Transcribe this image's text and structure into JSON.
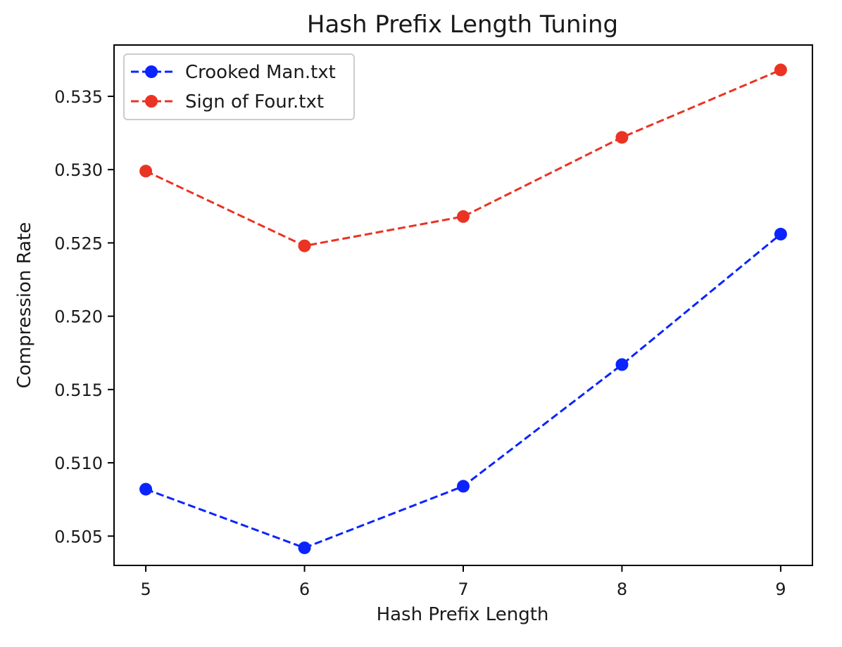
{
  "chart_data": {
    "type": "line",
    "title": "Hash Prefix Length Tuning",
    "xlabel": "Hash Prefix Length",
    "ylabel": "Compression Rate",
    "x": [
      5,
      6,
      7,
      8,
      9
    ],
    "xticks": [
      5,
      6,
      7,
      8,
      9
    ],
    "yticks": [
      0.505,
      0.51,
      0.515,
      0.52,
      0.525,
      0.53,
      0.535
    ],
    "xlim": [
      4.8,
      9.2
    ],
    "ylim": [
      0.503,
      0.5385
    ],
    "grid": false,
    "legend_position": "top-left",
    "line_style": "dashed",
    "marker": "circle",
    "series": [
      {
        "name": "Crooked Man.txt",
        "color": "#0b24fb",
        "values": [
          0.5082,
          0.5042,
          0.5084,
          0.5167,
          0.5256
        ]
      },
      {
        "name": "Sign of Four.txt",
        "color": "#ea3323",
        "values": [
          0.5299,
          0.5248,
          0.5268,
          0.5322,
          0.5368
        ]
      }
    ]
  }
}
